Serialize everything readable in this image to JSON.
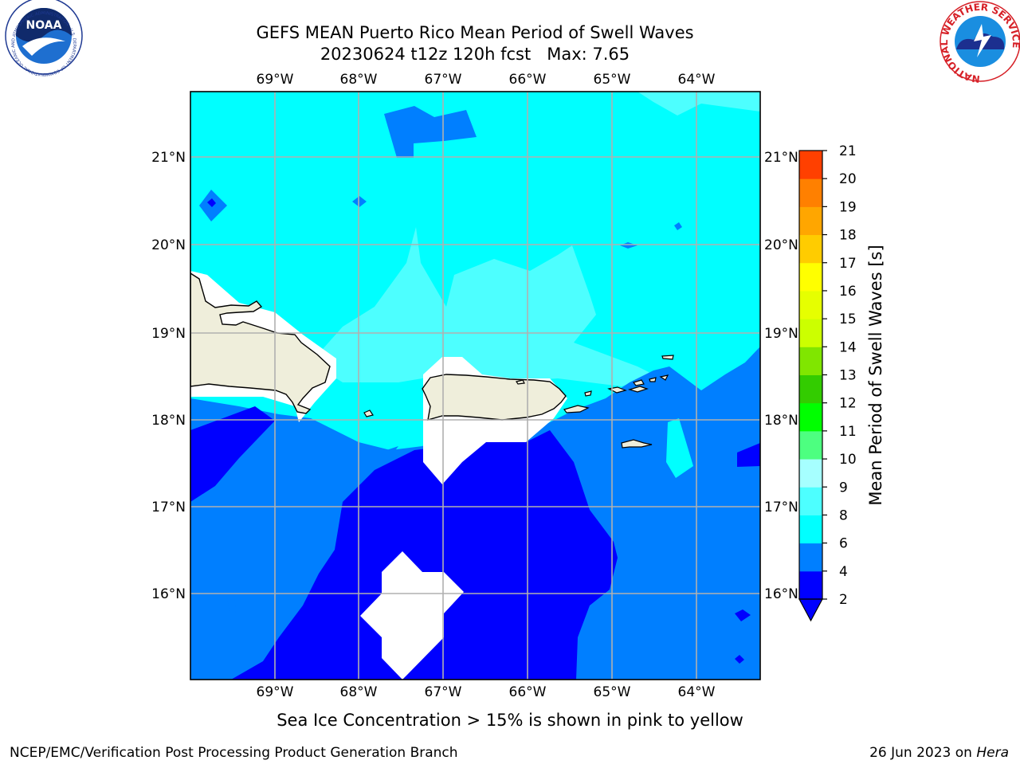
{
  "chart_data": {
    "type": "heatmap",
    "title": "GEFS MEAN Puerto Rico Mean Period of Swell Waves",
    "subtitle": "20230624 t12z 120h fcst   Max: 7.65",
    "lon_ticks": [
      "69°W",
      "68°W",
      "67°W",
      "66°W",
      "65°W",
      "64°W"
    ],
    "lat_ticks": [
      "21°N",
      "20°N",
      "19°N",
      "18°N",
      "17°N",
      "16°N"
    ],
    "xlim": [
      -70,
      -63.25
    ],
    "ylim": [
      15,
      21.75
    ],
    "grid": true,
    "colorbar": {
      "label": "Mean Period of Swell Waves [s]",
      "ticks": [
        2,
        4,
        6,
        8,
        9,
        10,
        11,
        12,
        13,
        14,
        15,
        16,
        17,
        18,
        19,
        20,
        21
      ],
      "colors": [
        "#0000ff",
        "#007fff",
        "#00ffff",
        "#4dffff",
        "#a6ffff",
        "#4dff80",
        "#00ff00",
        "#33cc00",
        "#80e600",
        "#ccff00",
        "#e6ff00",
        "#ffff00",
        "#ffcc00",
        "#ffa600",
        "#ff8000",
        "#ff4000",
        "#ff0000"
      ],
      "under_color": "#0000ff"
    },
    "note": "Sea Ice Concentration > 15% is shown in pink to yellow",
    "max_value": 7.65
  },
  "footer": {
    "left": "NCEP/EMC/Verification Post Processing Product Generation Branch",
    "date": "26 Jun 2023 on ",
    "machine": "Hera"
  },
  "logos": {
    "noaa": "NOAA",
    "noaa_ring": "NATIONAL OCEANIC AND ATMOSPHERIC ADMINISTRATION · U.S. DEPARTMENT OF COMMERCE",
    "nws_ring": "NATIONAL WEATHER SERVICE"
  },
  "colors": {
    "land": "#efeedb",
    "grid": "#b0b0b0"
  }
}
